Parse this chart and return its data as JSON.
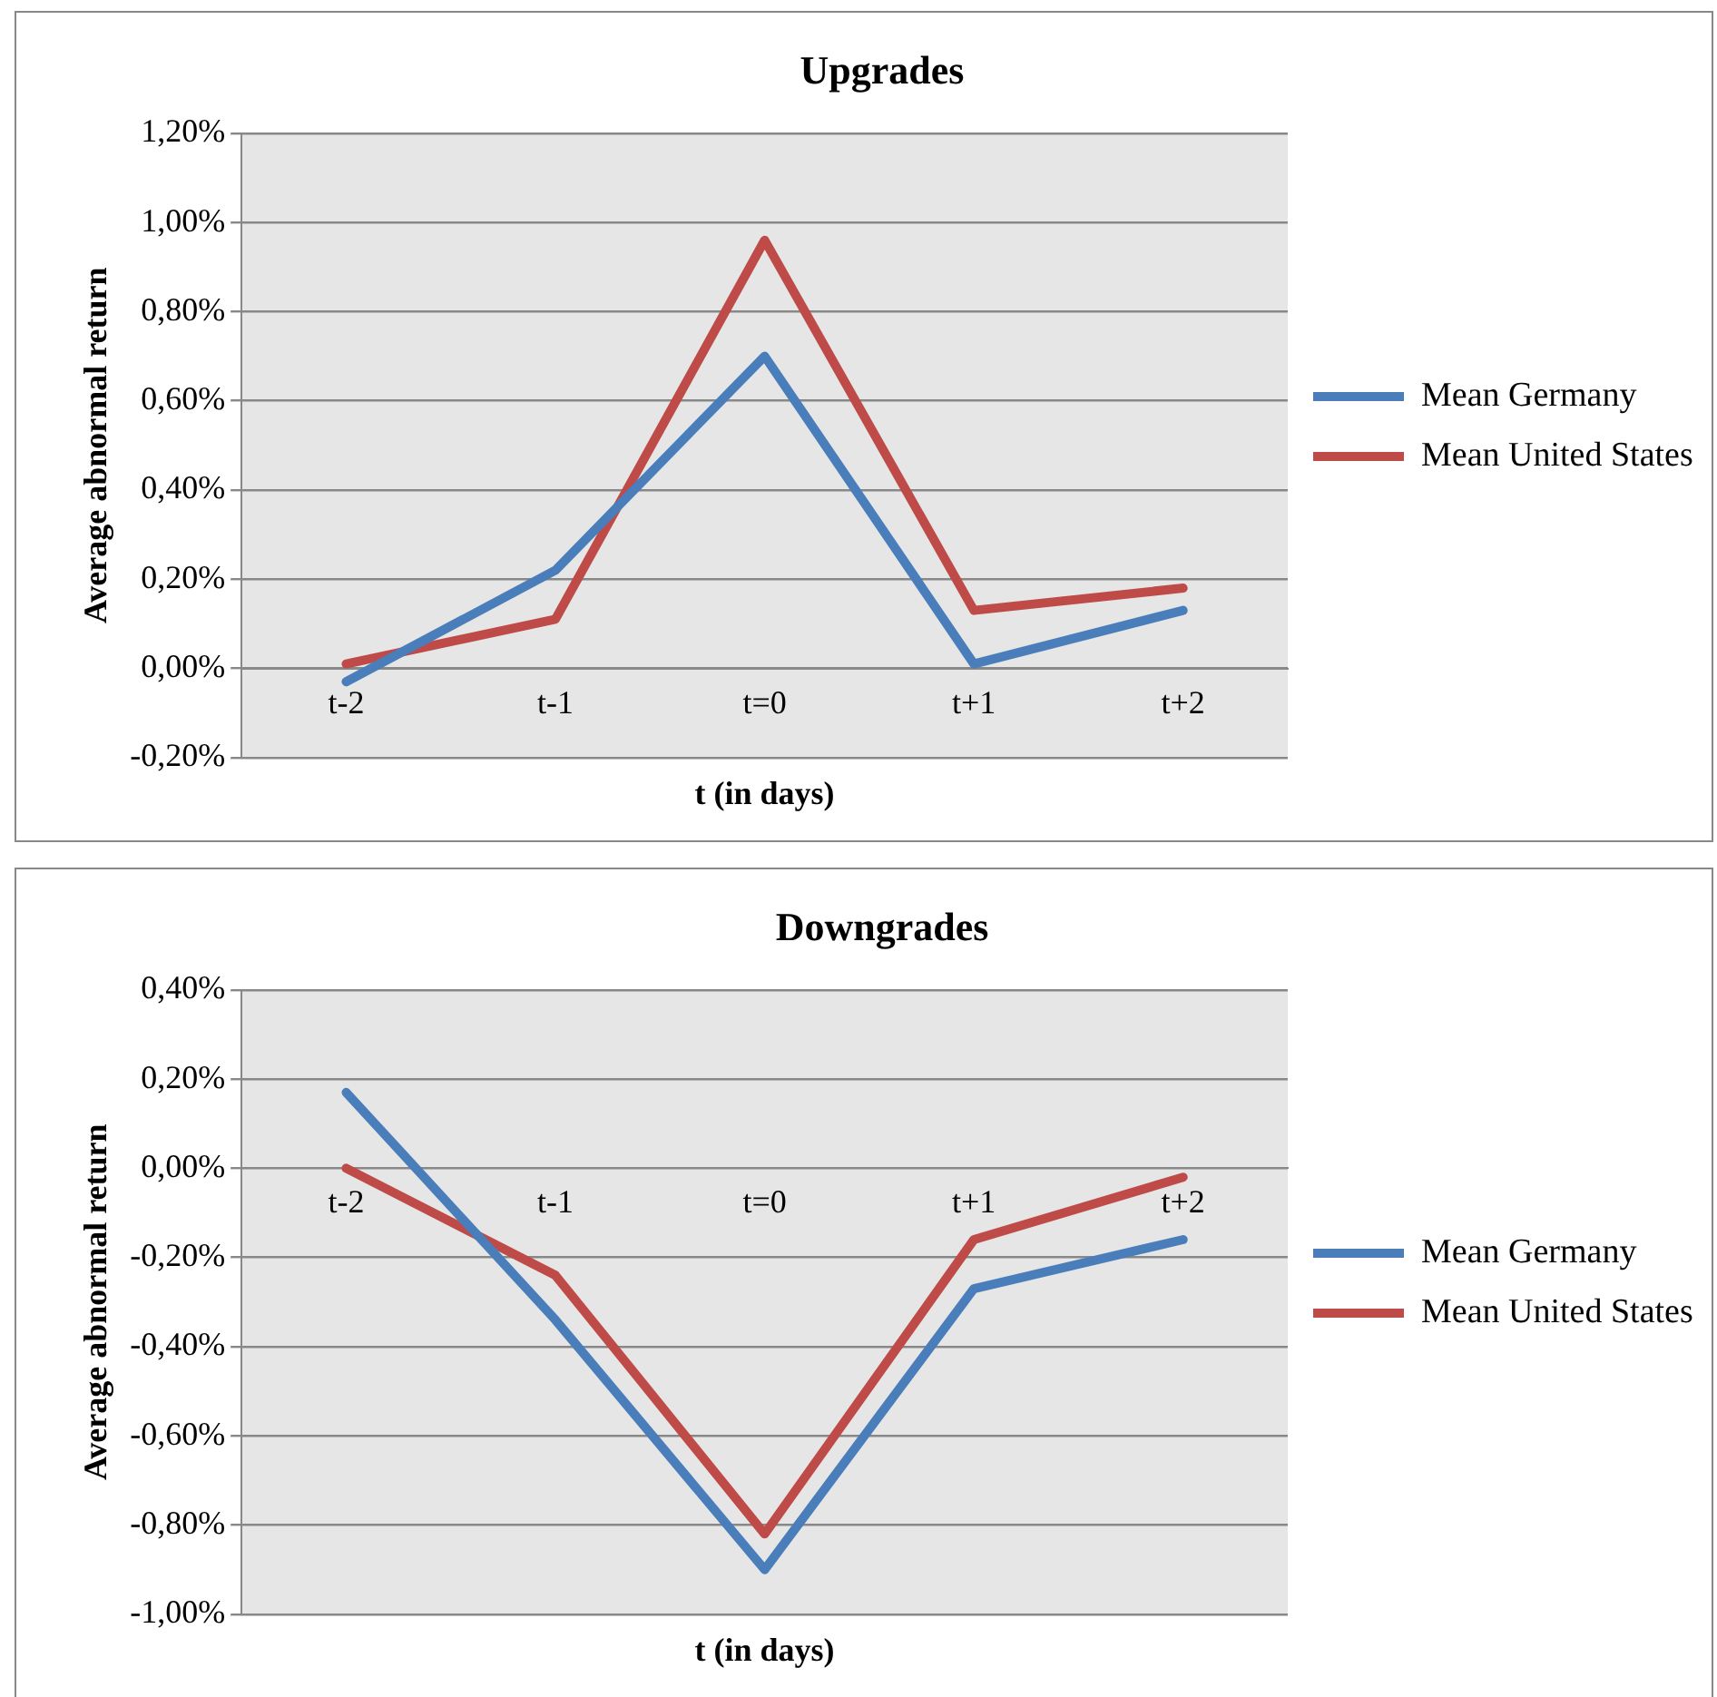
{
  "chart_data": [
    {
      "type": "line",
      "title": "Upgrades",
      "xlabel": "t (in days)",
      "ylabel": "Average abnormal return",
      "categories": [
        "t-2",
        "t-1",
        "t=0",
        "t+1",
        "t+2"
      ],
      "series": [
        {
          "name": "Mean Germany",
          "color": "#4a7ebb",
          "values": [
            -0.03,
            0.22,
            0.7,
            0.01,
            0.13
          ]
        },
        {
          "name": "Mean United States",
          "color": "#be4b48",
          "values": [
            0.01,
            0.11,
            0.96,
            0.13,
            0.18
          ]
        }
      ],
      "ylim": [
        -0.2,
        1.2
      ],
      "yticks": [
        {
          "value": -0.2,
          "label": "-0,20%"
        },
        {
          "value": 0,
          "label": "0,00%"
        },
        {
          "value": 0.2,
          "label": "0,20%"
        },
        {
          "value": 0.4,
          "label": "0,40%"
        },
        {
          "value": 0.6,
          "label": "0,60%"
        },
        {
          "value": 0.8,
          "label": "0,80%"
        },
        {
          "value": 1.0,
          "label": "1,00%"
        },
        {
          "value": 1.2,
          "label": "1,20%"
        }
      ],
      "grid": "y",
      "legend": "right",
      "marker": "none",
      "line_style": "solid"
    },
    {
      "type": "line",
      "title": "Downgrades",
      "xlabel": "t (in days)",
      "ylabel": "Average abnormal return",
      "categories": [
        "t-2",
        "t-1",
        "t=0",
        "t+1",
        "t+2"
      ],
      "series": [
        {
          "name": "Mean Germany",
          "color": "#4a7ebb",
          "values": [
            0.17,
            -0.34,
            -0.9,
            -0.27,
            -0.16
          ]
        },
        {
          "name": "Mean United States",
          "color": "#be4b48",
          "values": [
            0.0,
            -0.24,
            -0.82,
            -0.16,
            -0.02
          ]
        }
      ],
      "ylim": [
        -1.0,
        0.4
      ],
      "yticks": [
        {
          "value": -1.0,
          "label": "-1,00%"
        },
        {
          "value": -0.8,
          "label": "-0,80%"
        },
        {
          "value": -0.6,
          "label": "-0,60%"
        },
        {
          "value": -0.4,
          "label": "-0,40%"
        },
        {
          "value": -0.2,
          "label": "-0,20%"
        },
        {
          "value": 0,
          "label": "0,00%"
        },
        {
          "value": 0.2,
          "label": "0,20%"
        },
        {
          "value": 0.4,
          "label": "0,40%"
        }
      ],
      "grid": "y",
      "legend": "right",
      "marker": "none",
      "line_style": "solid"
    }
  ]
}
